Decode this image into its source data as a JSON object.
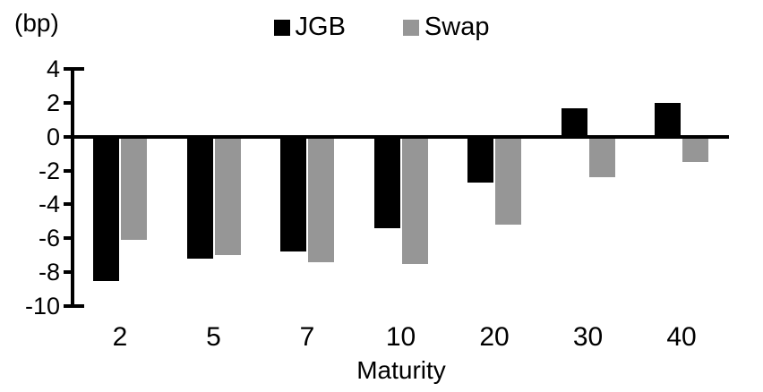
{
  "chart_data": {
    "type": "bar",
    "title": "",
    "y_unit_label": "(bp)",
    "xlabel": "Maturity",
    "categories": [
      "2",
      "5",
      "7",
      "10",
      "20",
      "30",
      "40"
    ],
    "series": [
      {
        "name": "JGB",
        "color": "#000000",
        "values": [
          -8.5,
          -7.2,
          -6.8,
          -5.4,
          -2.7,
          1.7,
          2.0
        ]
      },
      {
        "name": "Swap",
        "color": "#969696",
        "values": [
          -6.1,
          -7.0,
          -7.4,
          -7.5,
          -5.2,
          -2.4,
          -1.5
        ]
      }
    ],
    "ylim": [
      -10,
      4
    ],
    "yticks": [
      4,
      2,
      0,
      -2,
      -4,
      -6,
      -8,
      -10
    ],
    "legend_position": "top",
    "grid": false
  }
}
